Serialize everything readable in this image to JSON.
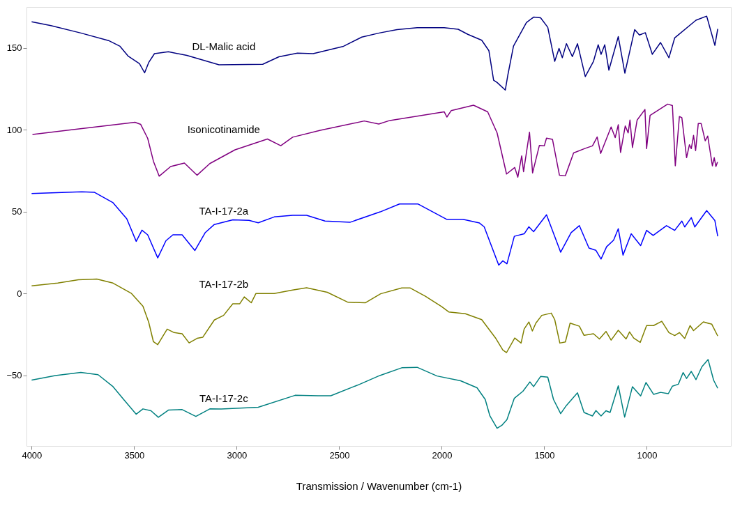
{
  "chart_data": {
    "type": "line",
    "xlabel": "Transmission / Wavenumber (cm-1)",
    "xlim": [
      4025,
      590
    ],
    "xticks": [
      4000,
      3500,
      3000,
      2500,
      2000,
      1500,
      1000
    ],
    "ylim": [
      -93,
      175
    ],
    "yticks": [
      -50,
      0,
      50,
      100,
      150
    ],
    "grid": false,
    "legend": false,
    "marker": "none",
    "line_style": "solid",
    "series": [
      {
        "name": "DL-Malic acid",
        "color": "#000080",
        "x": [
          4000,
          3906,
          3760,
          3625,
          3569,
          3530,
          3474,
          3449,
          3429,
          3401,
          3333,
          3243,
          3086,
          2873,
          2794,
          2704,
          2627,
          2479,
          2390,
          2305,
          2218,
          2120,
          1988,
          1920,
          1873,
          1805,
          1770,
          1747,
          1730,
          1690,
          1678,
          1650,
          1587,
          1552,
          1518,
          1483,
          1449,
          1428,
          1412,
          1392,
          1363,
          1338,
          1300,
          1260,
          1237,
          1223,
          1205,
          1185,
          1139,
          1107,
          1059,
          1036,
          1007,
          973,
          933,
          892,
          864,
          760,
          708,
          668,
          654
        ],
        "values": [
          166.0,
          163.6,
          159.1,
          154.5,
          151.0,
          145.1,
          140.4,
          134.8,
          141.1,
          146.5,
          147.7,
          145.4,
          139.7,
          140.0,
          144.6,
          146.8,
          146.5,
          151.0,
          156.6,
          159.1,
          161.2,
          162.3,
          162.3,
          161.4,
          158.3,
          154.7,
          148.3,
          130.3,
          128.9,
          124.3,
          133.2,
          151.1,
          165.5,
          168.8,
          168.4,
          162.6,
          141.8,
          149.7,
          144.0,
          152.6,
          144.7,
          152.6,
          132.5,
          141.8,
          151.9,
          146.1,
          151.9,
          136.4,
          156.9,
          134.6,
          161.2,
          157.9,
          159.3,
          146.1,
          153.3,
          144.0,
          156.1,
          166.9,
          169.4,
          151.6,
          161.6
        ]
      },
      {
        "name": "Isonicotinamide",
        "color": "#800080",
        "x": [
          3996,
          3827,
          3603,
          3496,
          3468,
          3434,
          3406,
          3378,
          3322,
          3255,
          3193,
          3131,
          3008,
          2850,
          2785,
          2727,
          2592,
          2378,
          2307,
          2253,
          1988,
          1975,
          1954,
          1845,
          1776,
          1730,
          1684,
          1644,
          1629,
          1610,
          1601,
          1572,
          1557,
          1524,
          1500,
          1489,
          1460,
          1426,
          1397,
          1357,
          1300,
          1265,
          1242,
          1225,
          1174,
          1154,
          1139,
          1128,
          1105,
          1091,
          1082,
          1070,
          1047,
          1009,
          1001,
          984,
          898,
          875,
          861,
          841,
          829,
          806,
          792,
          783,
          772,
          762,
          749,
          735,
          715,
          703,
          680,
          671,
          663,
          655
        ],
        "values": [
          97.2,
          99.7,
          103.0,
          104.6,
          103.3,
          94.8,
          80.8,
          71.7,
          77.6,
          79.7,
          72.3,
          79.4,
          87.8,
          94.4,
          90.3,
          95.5,
          99.7,
          105.4,
          103.5,
          105.7,
          111.0,
          107.8,
          111.7,
          115.0,
          111.0,
          98.1,
          73.0,
          77.0,
          71.1,
          84.1,
          74.4,
          98.5,
          73.7,
          90.4,
          90.2,
          94.9,
          94.2,
          72.3,
          72.0,
          85.9,
          88.7,
          90.2,
          95.6,
          85.6,
          101.7,
          95.2,
          103.1,
          86.2,
          102.4,
          98.1,
          106.0,
          89.2,
          106.0,
          112.4,
          88.5,
          108.8,
          115.7,
          114.8,
          78.0,
          108.1,
          107.4,
          83.0,
          90.9,
          88.5,
          96.6,
          87.3,
          103.8,
          103.8,
          93.3,
          96.2,
          78.0,
          83.0,
          77.6,
          80.4
        ]
      },
      {
        "name": "TA-I-17-2a",
        "color": "#0000ff",
        "x": [
          4000,
          3755,
          3693,
          3603,
          3536,
          3490,
          3462,
          3434,
          3385,
          3345,
          3311,
          3266,
          3204,
          3153,
          3109,
          3019,
          2940,
          2895,
          2817,
          2727,
          2659,
          2569,
          2446,
          2300,
          2206,
          2115,
          1977,
          1897,
          1816,
          1793,
          1765,
          1722,
          1702,
          1682,
          1646,
          1598,
          1575,
          1552,
          1489,
          1420,
          1369,
          1329,
          1282,
          1248,
          1223,
          1196,
          1162,
          1139,
          1116,
          1076,
          1030,
          1001,
          969,
          904,
          864,
          829,
          815,
          783,
          766,
          708,
          668,
          654
        ],
        "values": [
          61.1,
          62.2,
          61.8,
          55.5,
          45.7,
          31.9,
          38.7,
          35.9,
          21.8,
          32.3,
          35.9,
          35.9,
          26.3,
          37.3,
          42.2,
          45.0,
          44.7,
          43.2,
          46.8,
          47.8,
          47.8,
          44.3,
          43.6,
          49.9,
          54.7,
          54.7,
          45.4,
          45.4,
          43.1,
          40.8,
          31.5,
          17.4,
          20.0,
          18.2,
          35.0,
          36.5,
          40.8,
          37.8,
          48.1,
          25.3,
          37.2,
          41.5,
          27.8,
          26.4,
          21.1,
          28.6,
          32.6,
          39.6,
          23.5,
          36.5,
          29.3,
          38.6,
          35.5,
          41.5,
          38.6,
          44.3,
          40.7,
          46.4,
          40.7,
          50.7,
          44.6,
          35.0
        ]
      },
      {
        "name": "TA-I-17-2b",
        "color": "#808000",
        "x": [
          4000,
          3873,
          3772,
          3682,
          3603,
          3513,
          3457,
          3429,
          3406,
          3385,
          3339,
          3305,
          3266,
          3232,
          3193,
          3165,
          3109,
          3064,
          3019,
          2985,
          2963,
          2929,
          2906,
          2817,
          2727,
          2659,
          2558,
          2457,
          2373,
          2298,
          2195,
          2155,
          2080,
          2000,
          1966,
          1885,
          1805,
          1736,
          1702,
          1684,
          1644,
          1613,
          1598,
          1575,
          1558,
          1541,
          1512,
          1466,
          1449,
          1424,
          1397,
          1374,
          1329,
          1306,
          1260,
          1231,
          1199,
          1174,
          1139,
          1101,
          1084,
          1064,
          1032,
          1001,
          967,
          927,
          892,
          864,
          841,
          815,
          789,
          772,
          724,
          683,
          654
        ],
        "values": [
          4.7,
          6.4,
          8.5,
          8.9,
          6.4,
          0.1,
          -7.7,
          -17.5,
          -29.4,
          -31.2,
          -21.7,
          -23.8,
          -24.5,
          -30.1,
          -27.3,
          -26.6,
          -16.1,
          -13.3,
          -6.2,
          -6.2,
          -2.0,
          -5.6,
          0.1,
          0.1,
          2.2,
          3.6,
          0.8,
          -5.3,
          -5.6,
          -0.1,
          3.5,
          3.5,
          -1.6,
          -8.0,
          -11.2,
          -12.3,
          -15.9,
          -27.4,
          -34.5,
          -36.0,
          -27.1,
          -30.2,
          -21.6,
          -17.3,
          -22.8,
          -18.0,
          -13.3,
          -11.9,
          -15.9,
          -30.2,
          -29.5,
          -18.0,
          -19.9,
          -25.5,
          -24.5,
          -27.7,
          -23.1,
          -28.4,
          -22.4,
          -27.7,
          -23.4,
          -27.1,
          -29.8,
          -19.5,
          -19.5,
          -16.9,
          -23.8,
          -25.6,
          -23.8,
          -27.4,
          -19.5,
          -22.6,
          -17.3,
          -18.7,
          -25.9
        ]
      },
      {
        "name": "TA-I-17-2c",
        "color": "#008080",
        "x": [
          4000,
          3884,
          3760,
          3676,
          3603,
          3547,
          3490,
          3457,
          3418,
          3382,
          3333,
          3266,
          3199,
          3131,
          3075,
          2895,
          2715,
          2603,
          2541,
          2401,
          2302,
          2195,
          2120,
          2023,
          1908,
          1828,
          1788,
          1765,
          1730,
          1707,
          1682,
          1646,
          1604,
          1570,
          1552,
          1518,
          1483,
          1455,
          1420,
          1392,
          1338,
          1306,
          1265,
          1248,
          1223,
          1199,
          1179,
          1139,
          1108,
          1070,
          1030,
          1004,
          967,
          933,
          895,
          875,
          846,
          823,
          806,
          783,
          760,
          731,
          701,
          674,
          654
        ],
        "values": [
          -52.8,
          -50.0,
          -48.1,
          -49.5,
          -56.8,
          -65.2,
          -73.6,
          -70.4,
          -71.5,
          -75.5,
          -71.1,
          -70.8,
          -75.0,
          -70.4,
          -70.5,
          -69.4,
          -62.1,
          -62.4,
          -62.4,
          -55.4,
          -50.0,
          -45.3,
          -45.0,
          -50.3,
          -53.2,
          -57.5,
          -64.6,
          -74.7,
          -82.2,
          -80.4,
          -76.9,
          -63.9,
          -59.6,
          -53.9,
          -56.8,
          -50.6,
          -51.0,
          -64.6,
          -73.3,
          -68.3,
          -60.6,
          -72.6,
          -74.7,
          -71.4,
          -74.7,
          -71.5,
          -72.6,
          -56.3,
          -75.4,
          -56.8,
          -62.5,
          -54.3,
          -61.5,
          -60.3,
          -61.1,
          -56.5,
          -55.3,
          -48.2,
          -51.8,
          -47.5,
          -52.5,
          -44.6,
          -40.3,
          -52.9,
          -57.8
        ]
      }
    ]
  }
}
